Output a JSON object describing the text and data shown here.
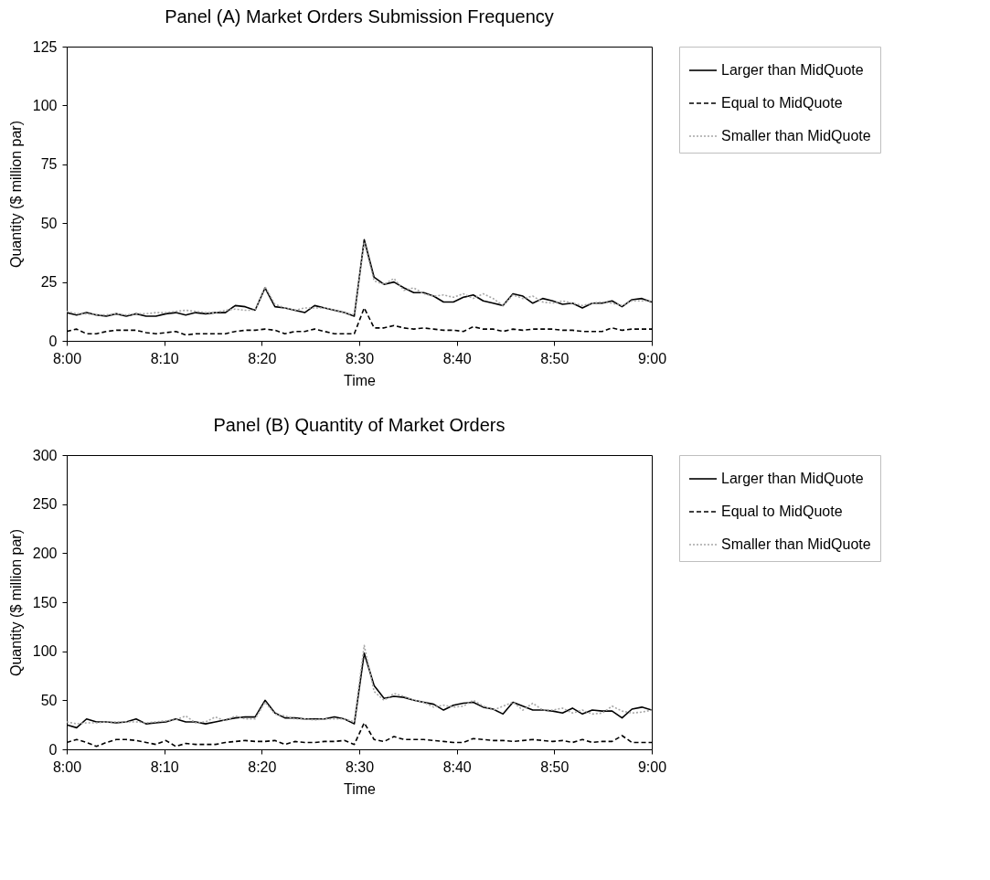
{
  "chart_data": [
    {
      "type": "line",
      "title": "Panel (A) Market Orders Submission Frequency",
      "xlabel": "Time",
      "ylabel": "Quantity ($ million par)",
      "x": [
        8,
        8.0169,
        8.0339,
        8.0508,
        8.0678,
        8.0847,
        8.1017,
        8.1186,
        8.1356,
        8.1525,
        8.1695,
        8.1864,
        8.2034,
        8.2203,
        8.2373,
        8.2542,
        8.2712,
        8.2881,
        8.3051,
        8.322,
        8.339,
        8.3559,
        8.3729,
        8.3898,
        8.4068,
        8.4237,
        8.4407,
        8.4576,
        8.4746,
        8.4915,
        8.5085,
        8.5254,
        8.5424,
        8.5593,
        8.5763,
        8.5932,
        8.6102,
        8.6271,
        8.6441,
        8.661,
        8.678,
        8.6949,
        8.7119,
        8.7288,
        8.7458,
        8.7627,
        8.7797,
        8.7966,
        8.8136,
        8.8305,
        8.8475,
        8.8644,
        8.8814,
        8.8983,
        8.9153,
        8.9322,
        8.9492,
        8.9661,
        8.9831,
        9
      ],
      "series": [
        {
          "name": "Larger than MidQuote",
          "color": "#000000",
          "line_style": "solid",
          "values": [
            12,
            11,
            12,
            11,
            10.5,
            11.5,
            10.5,
            11.5,
            10.5,
            10.5,
            11.5,
            12,
            11,
            12,
            11.5,
            12,
            12,
            15,
            14.5,
            13,
            22.5,
            14.5,
            14,
            13,
            12,
            15,
            14,
            13,
            12,
            10.5,
            43,
            27,
            24,
            25,
            22.5,
            20.5,
            20.5,
            19,
            16.5,
            16.5,
            18.5,
            19.5,
            17,
            16,
            15,
            20,
            19,
            16,
            18,
            17,
            15.5,
            16,
            14,
            16,
            16,
            17,
            14.5,
            17.5,
            18,
            16.5
          ]
        },
        {
          "name": "Equal to MidQuote",
          "color": "#000000",
          "line_style": "dashed",
          "values": [
            4,
            5,
            3,
            3,
            4,
            4.5,
            4.5,
            4.5,
            3.5,
            3,
            3.5,
            4,
            2.5,
            3,
            3,
            3,
            3,
            4,
            4.5,
            4.5,
            5,
            4.5,
            3,
            4,
            4,
            5,
            4,
            3,
            3,
            3,
            14,
            5.5,
            5.5,
            6.5,
            5.5,
            5,
            5.5,
            5,
            4.5,
            4.5,
            4,
            6,
            5,
            5,
            4,
            5,
            4.5,
            5,
            5,
            5,
            4.5,
            4.5,
            4,
            4,
            4,
            5.5,
            4.5,
            5,
            5,
            5
          ]
        },
        {
          "name": "Smaller than MidQuote",
          "color": "#a6a6a6",
          "line_style": "dotted",
          "values": [
            12.5,
            11.5,
            11.5,
            11,
            11,
            11.5,
            11,
            11.5,
            11.5,
            12,
            12,
            12.5,
            13,
            12.5,
            12,
            12,
            13,
            13.5,
            13,
            13,
            23,
            15.5,
            14,
            13,
            14,
            14,
            14,
            13,
            12,
            11,
            42,
            25.5,
            24,
            26.5,
            21.5,
            22.5,
            20,
            19,
            19.5,
            18.5,
            20,
            18,
            20,
            18,
            15,
            19.5,
            18,
            19,
            16.5,
            16,
            17,
            16,
            15,
            16,
            16.5,
            16,
            15,
            17,
            17,
            17
          ]
        }
      ],
      "xlim": [
        8,
        9
      ],
      "xticks": [
        {
          "value": 8,
          "label": "8:00"
        },
        {
          "value": 8.1667,
          "label": "8:10"
        },
        {
          "value": 8.3333,
          "label": "8:20"
        },
        {
          "value": 8.5,
          "label": "8:30"
        },
        {
          "value": 8.6667,
          "label": "8:40"
        },
        {
          "value": 8.8333,
          "label": "8:50"
        },
        {
          "value": 9,
          "label": "9:00"
        }
      ],
      "ylim": [
        0,
        125
      ],
      "yticks": [
        0,
        25,
        50,
        75,
        100,
        125
      ],
      "legend": "right"
    },
    {
      "type": "line",
      "title": "Panel (B) Quantity of Market Orders",
      "xlabel": "Time",
      "ylabel": "Quantity ($ million par)",
      "x": [
        8,
        8.0169,
        8.0339,
        8.0508,
        8.0678,
        8.0847,
        8.1017,
        8.1186,
        8.1356,
        8.1525,
        8.1695,
        8.1864,
        8.2034,
        8.2203,
        8.2373,
        8.2542,
        8.2712,
        8.2881,
        8.3051,
        8.322,
        8.339,
        8.3559,
        8.3729,
        8.3898,
        8.4068,
        8.4237,
        8.4407,
        8.4576,
        8.4746,
        8.4915,
        8.5085,
        8.5254,
        8.5424,
        8.5593,
        8.5763,
        8.5932,
        8.6102,
        8.6271,
        8.6441,
        8.661,
        8.678,
        8.6949,
        8.7119,
        8.7288,
        8.7458,
        8.7627,
        8.7797,
        8.7966,
        8.8136,
        8.8305,
        8.8475,
        8.8644,
        8.8814,
        8.8983,
        8.9153,
        8.9322,
        8.9492,
        8.9661,
        8.9831,
        9
      ],
      "series": [
        {
          "name": "Larger than MidQuote",
          "color": "#000000",
          "line_style": "solid",
          "values": [
            25,
            22,
            31,
            28,
            28,
            27,
            28,
            31,
            26,
            27,
            28,
            31,
            28,
            28,
            26,
            28,
            30,
            32,
            33,
            33,
            50,
            37,
            32,
            32,
            31,
            31,
            31,
            33,
            31,
            26,
            98,
            65,
            52,
            54,
            53,
            50,
            48,
            46,
            40,
            45,
            47,
            48,
            43,
            41,
            36,
            48,
            44,
            40,
            40,
            39,
            37,
            42,
            36,
            40,
            39,
            39,
            32,
            41,
            43,
            40
          ]
        },
        {
          "name": "Equal to MidQuote",
          "color": "#000000",
          "line_style": "dashed",
          "values": [
            7,
            10,
            7,
            3,
            7,
            10,
            10,
            9,
            7,
            5,
            9,
            3,
            6,
            5,
            5,
            5,
            7,
            8,
            9,
            8,
            8,
            9,
            5,
            8,
            7,
            7,
            8,
            8,
            9,
            5,
            27,
            10,
            8,
            13,
            10,
            10,
            10,
            9,
            8,
            7,
            7,
            11,
            10,
            9,
            9,
            8,
            9,
            10,
            9,
            8,
            9,
            7,
            10,
            7,
            8,
            8,
            14,
            7,
            7,
            7
          ]
        },
        {
          "name": "Smaller than MidQuote",
          "color": "#a6a6a6",
          "line_style": "dotted",
          "values": [
            28,
            26,
            27,
            27,
            28,
            28,
            28,
            28,
            27,
            28,
            29,
            30,
            34,
            27,
            28,
            33,
            29,
            34,
            31,
            31,
            48,
            36,
            34,
            31,
            31,
            30,
            31,
            31,
            31,
            28,
            106,
            59,
            50,
            57,
            54,
            50,
            48,
            43,
            45,
            43,
            44,
            50,
            44,
            40,
            44,
            48,
            40,
            47,
            40,
            40,
            42,
            37,
            40,
            36,
            37,
            44,
            39,
            37,
            38,
            40
          ]
        }
      ],
      "xlim": [
        8,
        9
      ],
      "xticks": [
        {
          "value": 8,
          "label": "8:00"
        },
        {
          "value": 8.1667,
          "label": "8:10"
        },
        {
          "value": 8.3333,
          "label": "8:20"
        },
        {
          "value": 8.5,
          "label": "8:30"
        },
        {
          "value": 8.6667,
          "label": "8:40"
        },
        {
          "value": 8.8333,
          "label": "8:50"
        },
        {
          "value": 9,
          "label": "9:00"
        }
      ],
      "ylim": [
        0,
        300
      ],
      "yticks": [
        0,
        50,
        100,
        150,
        200,
        250,
        300
      ],
      "legend": "right"
    }
  ]
}
